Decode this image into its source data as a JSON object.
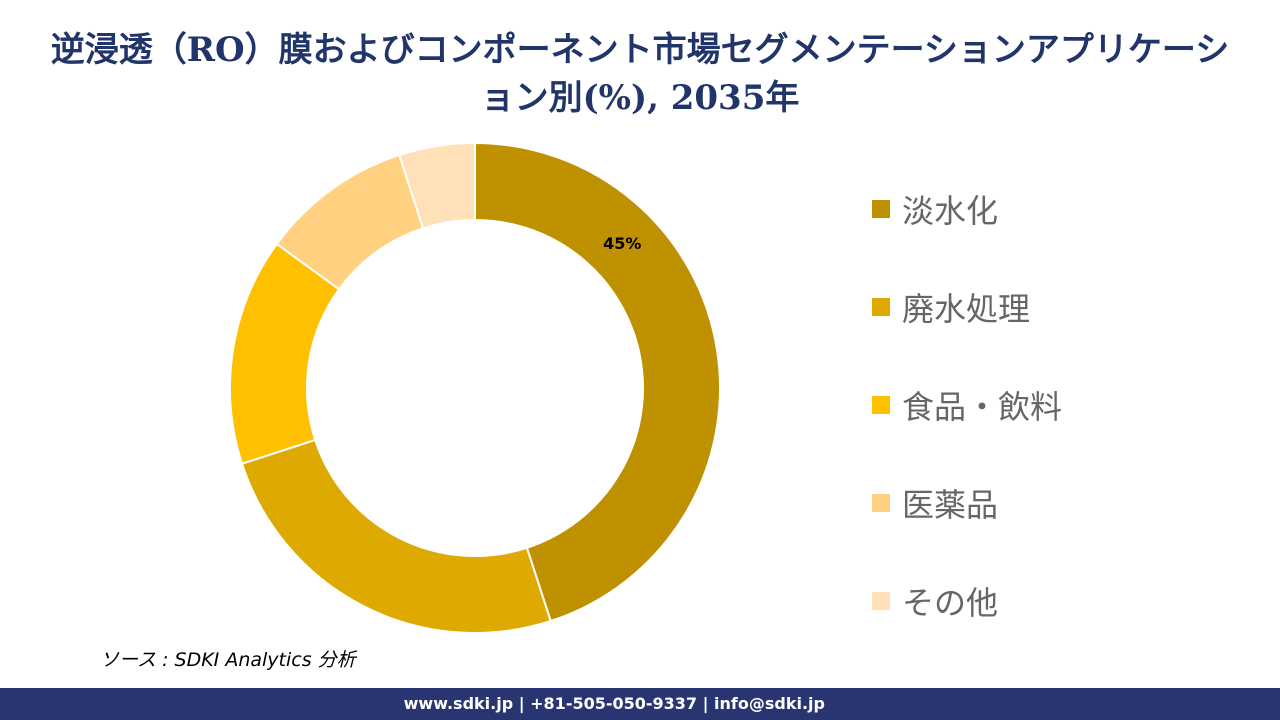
{
  "title": "逆浸透（RO）膜およびコンポーネント市場セグメンテーションアプリケーション別(%), 2035年",
  "chart_data": {
    "type": "pie",
    "donut": true,
    "title": "逆浸透（RO）膜およびコンポーネント市場セグメンテーションアプリケーション別(%), 2035年",
    "categories": [
      "淡水化",
      "廃水処理",
      "食品・飲料",
      "医薬品",
      "その他"
    ],
    "values": [
      45,
      25,
      15,
      10,
      5
    ],
    "colors": [
      "#BF9000",
      "#DEA900",
      "#FFC000",
      "#FFD180",
      "#FFE0B8"
    ],
    "data_labels": [
      "45%",
      "",
      "",
      "",
      ""
    ],
    "legend_position": "right"
  },
  "source": "ソース : SDKI Analytics 分析",
  "footer": "www.sdki.jp | +81-505-050-9337 | info@sdki.jp"
}
